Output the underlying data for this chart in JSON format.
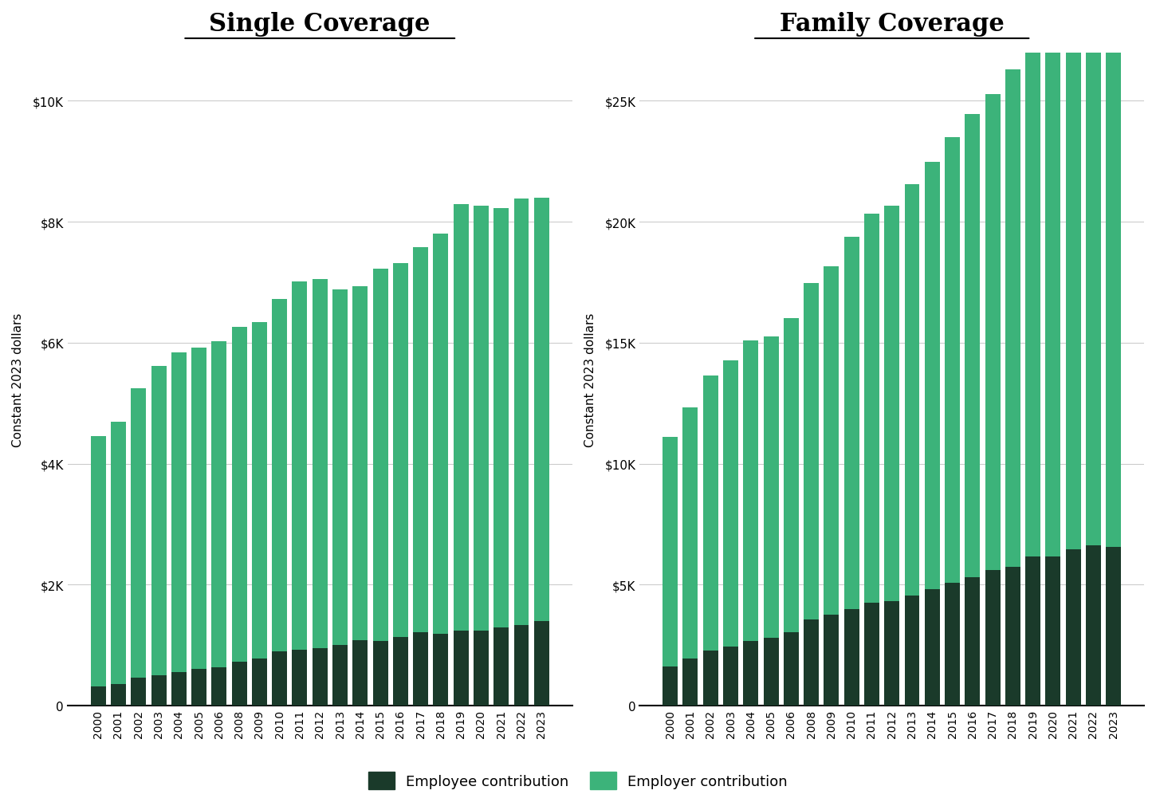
{
  "years": [
    2000,
    2001,
    2002,
    2003,
    2004,
    2005,
    2006,
    2008,
    2009,
    2010,
    2011,
    2012,
    2013,
    2014,
    2015,
    2016,
    2017,
    2018,
    2019,
    2020,
    2021,
    2022,
    2023
  ],
  "single_employee": [
    318,
    355,
    466,
    508,
    558,
    610,
    627,
    721,
    779,
    899,
    921,
    951,
    999,
    1081,
    1071,
    1129,
    1213,
    1186,
    1242,
    1243,
    1299,
    1327,
    1401
  ],
  "single_employer": [
    4136,
    4345,
    4785,
    5106,
    5281,
    5310,
    5398,
    5543,
    5560,
    5831,
    6099,
    6096,
    5886,
    5859,
    6158,
    6187,
    6367,
    6622,
    7052,
    7025,
    6923,
    7064,
    7000
  ],
  "family_employee": [
    1619,
    1957,
    2262,
    2454,
    2661,
    2797,
    3021,
    3551,
    3757,
    3997,
    4268,
    4316,
    4565,
    4823,
    5088,
    5294,
    5613,
    5744,
    6166,
    6177,
    6472,
    6641,
    6575
  ],
  "family_employer": [
    9503,
    10370,
    11393,
    11829,
    12427,
    12454,
    12996,
    13925,
    14397,
    15375,
    16065,
    16337,
    17003,
    17659,
    18419,
    19175,
    19671,
    20542,
    21611,
    21987,
    20955,
    21953,
    23124
  ],
  "single_title": "Single Coverage",
  "family_title": "Family Coverage",
  "ylabel": "Constant 2023 dollars",
  "employer_color": "#3cb37a",
  "employee_color": "#1a3a2a",
  "background_color": "#ffffff",
  "grid_color": "#cccccc",
  "single_yticks": [
    0,
    2000,
    4000,
    6000,
    8000,
    10000
  ],
  "single_ylabels": [
    "0",
    "$2K",
    "$4K",
    "$6K",
    "$8K",
    "$10K"
  ],
  "family_yticks": [
    0,
    5000,
    10000,
    15000,
    20000,
    25000
  ],
  "family_ylabels": [
    "0",
    "$5K",
    "$10K",
    "$15K",
    "$20K",
    "$25K"
  ],
  "single_ylim": [
    0,
    10800
  ],
  "family_ylim": [
    0,
    27000
  ],
  "legend_labels": [
    "Employee contribution",
    "Employer contribution"
  ]
}
